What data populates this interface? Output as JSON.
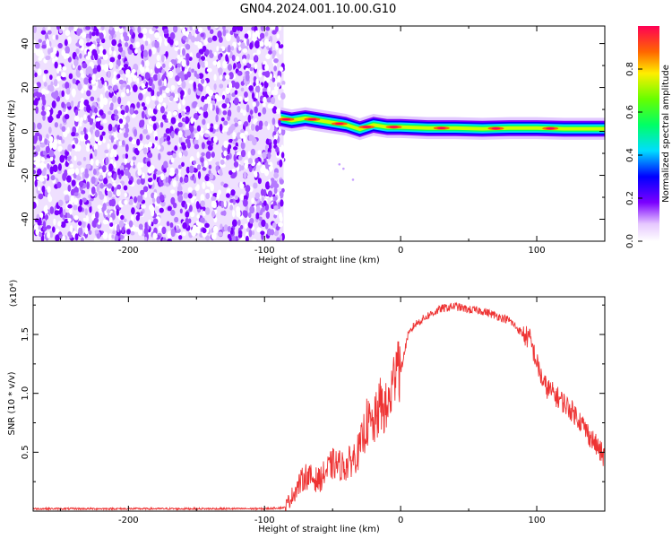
{
  "title": "GN04.2024.001.10.00.G10",
  "colors": {
    "noise": "#7b00ff",
    "snr_line": "#ee3333",
    "frame": "#000000"
  },
  "chart_data": [
    {
      "type": "heatmap",
      "xlabel": "Height of straight line (km)",
      "ylabel": "Frequency (Hz)",
      "xlim": [
        -270,
        150
      ],
      "ylim": [
        -50,
        48
      ],
      "xticks": [
        -200,
        -100,
        0,
        100
      ],
      "xtick_labels": [
        "-200",
        "-100",
        "0",
        "100"
      ],
      "yticks": [
        -40,
        -20,
        0,
        20,
        40
      ],
      "ytick_labels": [
        "-40",
        "-20",
        "0",
        "20",
        "40"
      ],
      "noise_region": {
        "x_from": -270,
        "x_to": -86,
        "amplitude_range": [
          0.0,
          0.2
        ]
      },
      "ridge": {
        "x": [
          -88,
          -80,
          -70,
          -60,
          -50,
          -40,
          -30,
          -20,
          -10,
          0,
          20,
          40,
          60,
          80,
          100,
          120,
          150
        ],
        "freq": [
          6,
          5,
          6,
          5,
          4,
          3,
          1,
          3,
          2,
          2,
          1.5,
          1.5,
          1.2,
          1.5,
          1.5,
          1.2,
          1.2
        ],
        "peak_amplitude": 0.95
      },
      "colorbar": {
        "label": "Normalized spectral amplitude",
        "range": [
          0,
          1
        ],
        "ticks": [
          "0.0",
          "0.2",
          "0.4",
          "0.6",
          "0.8"
        ]
      }
    },
    {
      "type": "line",
      "xlabel": "Height of straight line (km)",
      "ylabel": "SNR (10 * v/v)",
      "y_multiplier": "(x10⁴)",
      "xlim": [
        -270,
        150
      ],
      "ylim": [
        0,
        1.82
      ],
      "xticks": [
        -200,
        -100,
        0,
        100
      ],
      "xtick_labels": [
        "-200",
        "-100",
        "0",
        "100"
      ],
      "yticks": [
        0.5,
        1.0,
        1.5
      ],
      "ytick_labels": [
        "0.5",
        "1.0",
        "1.5"
      ],
      "series": [
        {
          "x": [
            -270,
            -200,
            -150,
            -100,
            -85,
            -75,
            -70,
            -60,
            -50,
            -40,
            -30,
            -25,
            -20,
            -15,
            -10,
            -5,
            -3,
            0,
            5,
            10,
            20,
            30,
            40,
            50,
            60,
            70,
            80,
            90,
            95,
            100,
            105,
            110,
            120,
            130,
            140,
            150
          ],
          "values": [
            0.02,
            0.02,
            0.02,
            0.02,
            0.03,
            0.22,
            0.3,
            0.26,
            0.4,
            0.38,
            0.52,
            0.75,
            0.72,
            0.9,
            0.85,
            1.1,
            1.4,
            1.18,
            1.48,
            1.58,
            1.66,
            1.72,
            1.74,
            1.71,
            1.7,
            1.66,
            1.62,
            1.5,
            1.46,
            1.26,
            1.08,
            1.02,
            0.92,
            0.8,
            0.62,
            0.45
          ]
        }
      ]
    }
  ]
}
